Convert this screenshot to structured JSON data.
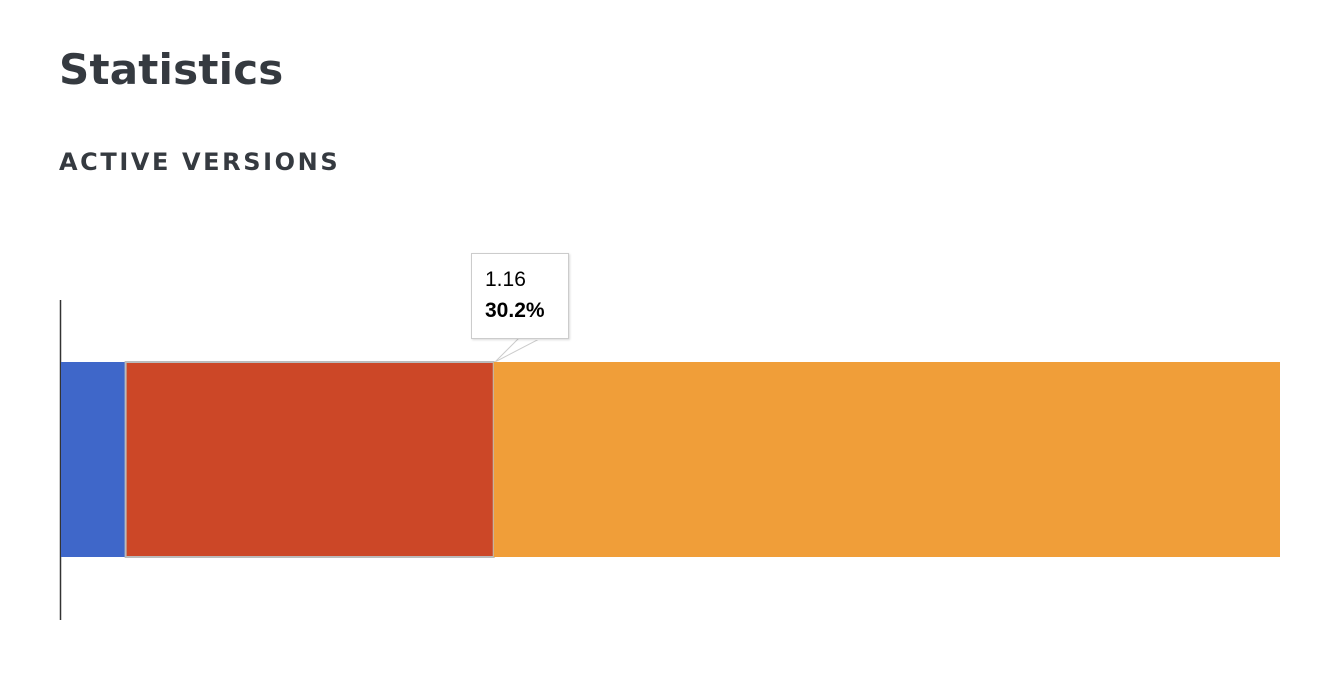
{
  "page": {
    "title": "Statistics",
    "section_title": "ACTIVE VERSIONS"
  },
  "chart_data": {
    "type": "bar",
    "orientation": "horizontal",
    "stacked": true,
    "percent_stacked": true,
    "categories": [
      ""
    ],
    "series": [
      {
        "value": 5.3,
        "color": "#3f67c9"
      },
      {
        "label": "1.16",
        "value": 30.2,
        "color": "#cc4727"
      },
      {
        "value": 64.5,
        "color": "#f09e39"
      }
    ],
    "xlim": [
      0,
      100
    ],
    "grid": false,
    "axis_line": "left",
    "tooltip": {
      "series_index": 1,
      "label": "1.16",
      "value_text": "30.2%"
    }
  }
}
